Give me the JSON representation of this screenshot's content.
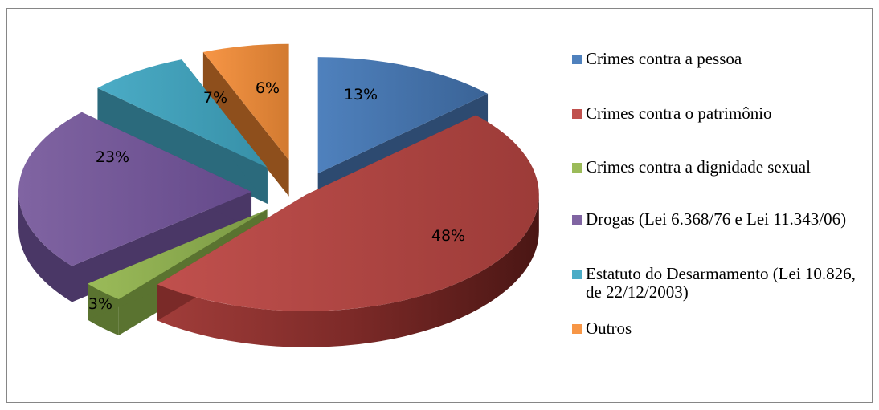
{
  "chart_data": {
    "type": "pie",
    "style": "3d-exploded",
    "legend_position": "right",
    "slices": [
      {
        "label": "Crimes contra a pessoa",
        "value": 13,
        "label_text": "13%",
        "color": "#4F81BD"
      },
      {
        "label": "Crimes contra o patrimônio",
        "value": 48,
        "label_text": "48%",
        "color": "#C0504D"
      },
      {
        "label": "Crimes contra a dignidade sexual",
        "value": 3,
        "label_text": "3%",
        "color": "#9BBB59"
      },
      {
        "label": "Drogas (Lei 6.368/76 e Lei 11.343/06)",
        "value": 23,
        "label_text": "23%",
        "color": "#8064A2"
      },
      {
        "label": "Estatuto do Desarmamento (Lei 10.826, de 22/12/2003)",
        "value": 7,
        "label_text": "7%",
        "color": "#4BACC6"
      },
      {
        "label": "Outros",
        "value": 6,
        "label_text": "6%",
        "color": "#F79646"
      }
    ]
  }
}
